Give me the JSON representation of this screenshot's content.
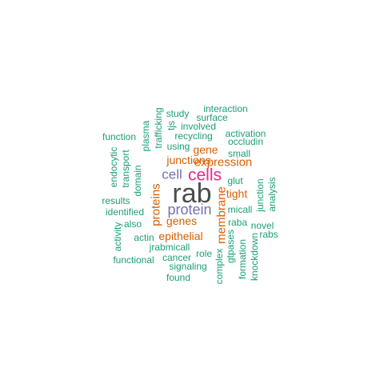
{
  "colors": {
    "teal": "#1b9e77",
    "orange": "#d95f02",
    "purple": "#7570b3",
    "magenta": "#e7298a",
    "dark": "#4d4d4d"
  },
  "words": [
    {
      "text": "rab",
      "color": "#4d4d4d"
    },
    {
      "text": "cells",
      "color": "#e7298a"
    },
    {
      "text": "protein",
      "color": "#7570b3"
    },
    {
      "text": "cell",
      "color": "#7570b3"
    },
    {
      "text": "proteins",
      "color": "#d95f02"
    },
    {
      "text": "membrane",
      "color": "#d95f02"
    },
    {
      "text": "expression",
      "color": "#d95f02"
    },
    {
      "text": "junctions",
      "color": "#d95f02"
    },
    {
      "text": "epithelial",
      "color": "#d95f02"
    },
    {
      "text": "genes",
      "color": "#d95f02"
    },
    {
      "text": "tight",
      "color": "#d95f02"
    },
    {
      "text": "gene",
      "color": "#d95f02"
    },
    {
      "text": "interaction",
      "color": "#1b9e77"
    },
    {
      "text": "study",
      "color": "#1b9e77"
    },
    {
      "text": "surface",
      "color": "#1b9e77"
    },
    {
      "text": "tjs",
      "color": "#1b9e77"
    },
    {
      "text": "involved",
      "color": "#1b9e77"
    },
    {
      "text": "plasma",
      "color": "#1b9e77"
    },
    {
      "text": "trafficking",
      "color": "#1b9e77"
    },
    {
      "text": "activation",
      "color": "#1b9e77"
    },
    {
      "text": "occludin",
      "color": "#1b9e77"
    },
    {
      "text": "recycling",
      "color": "#1b9e77"
    },
    {
      "text": "function",
      "color": "#1b9e77"
    },
    {
      "text": "using",
      "color": "#1b9e77"
    },
    {
      "text": "small",
      "color": "#1b9e77"
    },
    {
      "text": "endocytic",
      "color": "#1b9e77"
    },
    {
      "text": "transport",
      "color": "#1b9e77"
    },
    {
      "text": "domain",
      "color": "#1b9e77"
    },
    {
      "text": "glut",
      "color": "#1b9e77"
    },
    {
      "text": "junction",
      "color": "#1b9e77"
    },
    {
      "text": "analysis",
      "color": "#1b9e77"
    },
    {
      "text": "results",
      "color": "#1b9e77"
    },
    {
      "text": "identified",
      "color": "#1b9e77"
    },
    {
      "text": "micall",
      "color": "#1b9e77"
    },
    {
      "text": "also",
      "color": "#1b9e77"
    },
    {
      "text": "raba",
      "color": "#1b9e77"
    },
    {
      "text": "novel",
      "color": "#1b9e77"
    },
    {
      "text": "activity",
      "color": "#1b9e77"
    },
    {
      "text": "actin",
      "color": "#1b9e77"
    },
    {
      "text": "gtpases",
      "color": "#1b9e77"
    },
    {
      "text": "rabs",
      "color": "#1b9e77"
    },
    {
      "text": "jrabmicall",
      "color": "#1b9e77"
    },
    {
      "text": "knockdown",
      "color": "#1b9e77"
    },
    {
      "text": "formation",
      "color": "#1b9e77"
    },
    {
      "text": "role",
      "color": "#1b9e77"
    },
    {
      "text": "functional",
      "color": "#1b9e77"
    },
    {
      "text": "cancer",
      "color": "#1b9e77"
    },
    {
      "text": "complex",
      "color": "#1b9e77"
    },
    {
      "text": "signaling",
      "color": "#1b9e77"
    },
    {
      "text": "found",
      "color": "#1b9e77"
    }
  ]
}
